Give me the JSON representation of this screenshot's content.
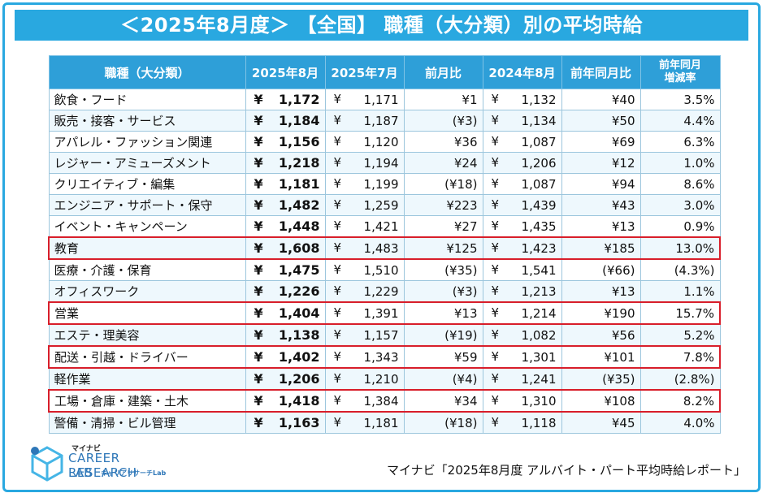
{
  "header": {
    "title": "＜2025年8月度＞ 【全国】 職種（大分類）別の平均時給"
  },
  "table": {
    "columns": [
      "職種（大分類）",
      "2025年8月",
      "2025年7月",
      "前月比",
      "2024年8月",
      "前年同月比",
      "前年同月増減率"
    ],
    "col_rate_line1": "前年同月",
    "col_rate_line2": "増減率",
    "yen_symbol": "¥",
    "rows": [
      {
        "category": "飲食・フード",
        "aug2025": "1,172",
        "jul2025": "1,171",
        "mom": "¥1",
        "aug2024": "1,132",
        "yoy": "¥40",
        "rate": "3.5%",
        "mom_neg": false,
        "yoy_neg": false,
        "rate_neg": false,
        "highlight": false
      },
      {
        "category": "販売・接客・サービス",
        "aug2025": "1,184",
        "jul2025": "1,187",
        "mom": "(¥3)",
        "aug2024": "1,134",
        "yoy": "¥50",
        "rate": "4.4%",
        "mom_neg": true,
        "yoy_neg": false,
        "rate_neg": false,
        "highlight": false
      },
      {
        "category": "アパレル・ファッション関連",
        "aug2025": "1,156",
        "jul2025": "1,120",
        "mom": "¥36",
        "aug2024": "1,087",
        "yoy": "¥69",
        "rate": "6.3%",
        "mom_neg": false,
        "yoy_neg": false,
        "rate_neg": false,
        "highlight": false
      },
      {
        "category": "レジャー・アミューズメント",
        "aug2025": "1,218",
        "jul2025": "1,194",
        "mom": "¥24",
        "aug2024": "1,206",
        "yoy": "¥12",
        "rate": "1.0%",
        "mom_neg": false,
        "yoy_neg": false,
        "rate_neg": false,
        "highlight": false
      },
      {
        "category": "クリエイティブ・編集",
        "aug2025": "1,181",
        "jul2025": "1,199",
        "mom": "(¥18)",
        "aug2024": "1,087",
        "yoy": "¥94",
        "rate": "8.6%",
        "mom_neg": true,
        "yoy_neg": false,
        "rate_neg": false,
        "highlight": false
      },
      {
        "category": "エンジニア・サポート・保守",
        "aug2025": "1,482",
        "jul2025": "1,259",
        "mom": "¥223",
        "aug2024": "1,439",
        "yoy": "¥43",
        "rate": "3.0%",
        "mom_neg": false,
        "yoy_neg": false,
        "rate_neg": false,
        "highlight": false
      },
      {
        "category": "イベント・キャンペーン",
        "aug2025": "1,448",
        "jul2025": "1,421",
        "mom": "¥27",
        "aug2024": "1,435",
        "yoy": "¥13",
        "rate": "0.9%",
        "mom_neg": false,
        "yoy_neg": false,
        "rate_neg": false,
        "highlight": false
      },
      {
        "category": "教育",
        "aug2025": "1,608",
        "jul2025": "1,483",
        "mom": "¥125",
        "aug2024": "1,423",
        "yoy": "¥185",
        "rate": "13.0%",
        "mom_neg": false,
        "yoy_neg": false,
        "rate_neg": false,
        "highlight": true
      },
      {
        "category": "医療・介護・保育",
        "aug2025": "1,475",
        "jul2025": "1,510",
        "mom": "(¥35)",
        "aug2024": "1,541",
        "yoy": "(¥66)",
        "rate": "(4.3%)",
        "mom_neg": true,
        "yoy_neg": true,
        "rate_neg": true,
        "highlight": false
      },
      {
        "category": "オフィスワーク",
        "aug2025": "1,226",
        "jul2025": "1,229",
        "mom": "(¥3)",
        "aug2024": "1,213",
        "yoy": "¥13",
        "rate": "1.1%",
        "mom_neg": true,
        "yoy_neg": false,
        "rate_neg": false,
        "highlight": false
      },
      {
        "category": "営業",
        "aug2025": "1,404",
        "jul2025": "1,391",
        "mom": "¥13",
        "aug2024": "1,214",
        "yoy": "¥190",
        "rate": "15.7%",
        "mom_neg": false,
        "yoy_neg": false,
        "rate_neg": false,
        "highlight": true
      },
      {
        "category": "エステ・理美容",
        "aug2025": "1,138",
        "jul2025": "1,157",
        "mom": "(¥19)",
        "aug2024": "1,082",
        "yoy": "¥56",
        "rate": "5.2%",
        "mom_neg": true,
        "yoy_neg": false,
        "rate_neg": false,
        "highlight": false
      },
      {
        "category": "配送・引越・ドライバー",
        "aug2025": "1,402",
        "jul2025": "1,343",
        "mom": "¥59",
        "aug2024": "1,301",
        "yoy": "¥101",
        "rate": "7.8%",
        "mom_neg": false,
        "yoy_neg": false,
        "rate_neg": false,
        "highlight": true
      },
      {
        "category": "軽作業",
        "aug2025": "1,206",
        "jul2025": "1,210",
        "mom": "(¥4)",
        "aug2024": "1,241",
        "yoy": "(¥35)",
        "rate": "(2.8%)",
        "mom_neg": true,
        "yoy_neg": true,
        "rate_neg": true,
        "highlight": false
      },
      {
        "category": "工場・倉庫・建築・土木",
        "aug2025": "1,418",
        "jul2025": "1,384",
        "mom": "¥34",
        "aug2024": "1,310",
        "yoy": "¥108",
        "rate": "8.2%",
        "mom_neg": false,
        "yoy_neg": false,
        "rate_neg": false,
        "highlight": true
      },
      {
        "category": "警備・清掃・ビル管理",
        "aug2025": "1,163",
        "jul2025": "1,181",
        "mom": "(¥18)",
        "aug2024": "1,118",
        "yoy": "¥45",
        "rate": "4.0%",
        "mom_neg": true,
        "yoy_neg": false,
        "rate_neg": false,
        "highlight": false
      }
    ]
  },
  "logo": {
    "top": "マイナビ",
    "line1": "CAREER RESEARCH",
    "line2": "LAB",
    "sub": "キャリアリサーチLab"
  },
  "footer": {
    "source": "マイナビ「2025年8月度 アルバイト・パート平均時給レポート」"
  },
  "colors": {
    "accent": "#29a8e0",
    "negative": "#e23b32",
    "highlight_border": "#d81e2a"
  }
}
